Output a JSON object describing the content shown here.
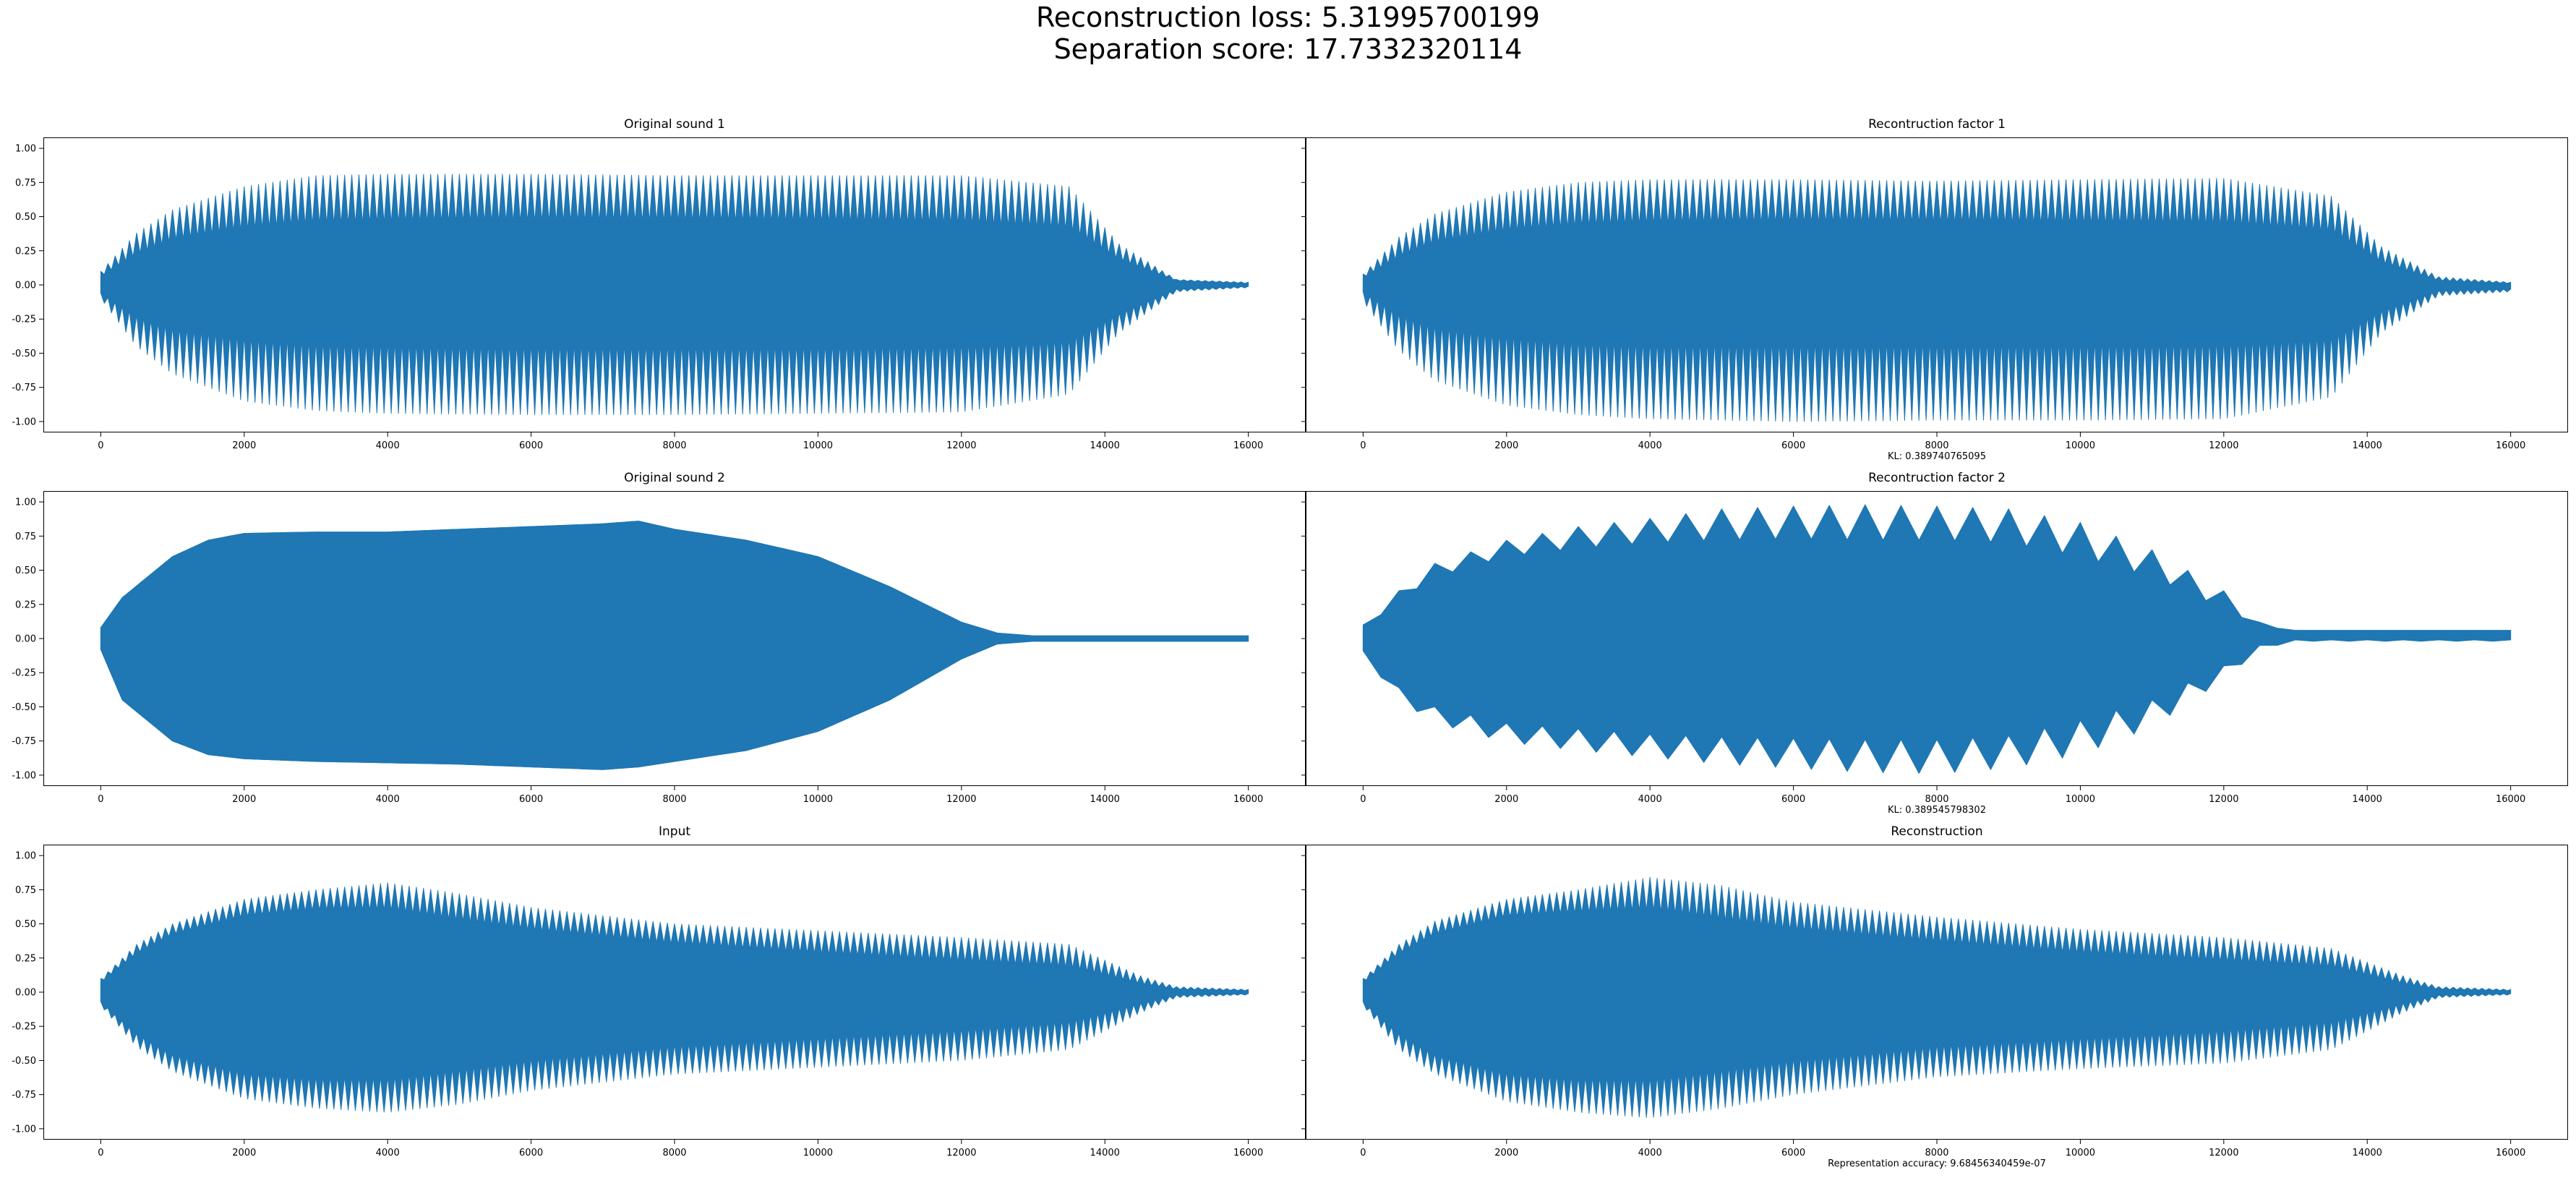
{
  "figure": {
    "suptitle_line1": "Reconstruction loss: 5.31995700199",
    "suptitle_line2": "Separation score: 17.7332320114",
    "line_color": "#1f77b4",
    "background": "#ffffff"
  },
  "chart_data": [
    {
      "type": "line",
      "title": "Original sound 1",
      "xlabel": "",
      "xlim": [
        -800,
        16800
      ],
      "ylim": [
        -1.08,
        1.08
      ],
      "xticks": [
        0,
        2000,
        4000,
        6000,
        8000,
        10000,
        12000,
        14000,
        16000
      ],
      "yticks": [
        -1.0,
        -0.75,
        -0.5,
        -0.25,
        0.0,
        0.25,
        0.5,
        0.75,
        1.0
      ],
      "ytick_labels": [
        "-1.00",
        "-0.75",
        "-0.50",
        "-0.25",
        "0.00",
        "0.25",
        "0.50",
        "0.75",
        "1.00"
      ],
      "envelope": {
        "x": [
          0,
          500,
          1000,
          2000,
          3000,
          4000,
          6000,
          8000,
          10000,
          12000,
          13500,
          14200,
          15000,
          16000
        ],
        "max": [
          0.1,
          0.38,
          0.55,
          0.72,
          0.8,
          0.81,
          0.81,
          0.8,
          0.8,
          0.8,
          0.72,
          0.3,
          0.04,
          0.02
        ],
        "min": [
          -0.1,
          -0.45,
          -0.65,
          -0.85,
          -0.92,
          -0.94,
          -0.95,
          -0.95,
          -0.94,
          -0.93,
          -0.8,
          -0.35,
          -0.05,
          -0.02
        ],
        "core_max": [
          0.06,
          0.22,
          0.32,
          0.4,
          0.44,
          0.45,
          0.46,
          0.46,
          0.45,
          0.44,
          0.4,
          0.18,
          0.03,
          0.01
        ],
        "core_min": [
          -0.06,
          -0.22,
          -0.3,
          -0.36,
          -0.4,
          -0.41,
          -0.42,
          -0.42,
          -0.42,
          -0.41,
          -0.38,
          -0.2,
          -0.03,
          -0.01
        ],
        "period": 100
      },
      "grid": false
    },
    {
      "type": "line",
      "title": "Recontruction factor 1",
      "xlabel": "KL: 0.389740765095",
      "xlim": [
        -800,
        16800
      ],
      "ylim": [
        -1.08,
        1.08
      ],
      "xticks": [
        0,
        2000,
        4000,
        6000,
        8000,
        10000,
        12000,
        14000,
        16000
      ],
      "yticks": [
        -1.0,
        -0.75,
        -0.5,
        -0.25,
        0.0,
        0.25,
        0.5,
        0.75,
        1.0
      ],
      "ytick_labels": [
        "",
        "",
        "",
        "",
        "",
        "",
        "",
        "",
        ""
      ],
      "envelope": {
        "x": [
          0,
          500,
          1000,
          2000,
          3000,
          4000,
          6000,
          8000,
          10000,
          12000,
          13500,
          14200,
          15000,
          16000
        ],
        "max": [
          0.08,
          0.35,
          0.52,
          0.68,
          0.75,
          0.77,
          0.77,
          0.76,
          0.77,
          0.78,
          0.65,
          0.28,
          0.06,
          0.02
        ],
        "min": [
          -0.12,
          -0.48,
          -0.7,
          -0.88,
          -0.95,
          -0.98,
          -1.0,
          -0.99,
          -0.99,
          -0.98,
          -0.82,
          -0.35,
          -0.08,
          -0.05
        ],
        "core_max": [
          0.05,
          0.2,
          0.3,
          0.38,
          0.42,
          0.44,
          0.45,
          0.45,
          0.44,
          0.43,
          0.38,
          0.16,
          0.03,
          0.01
        ],
        "core_min": [
          -0.05,
          -0.2,
          -0.28,
          -0.34,
          -0.38,
          -0.4,
          -0.4,
          -0.4,
          -0.4,
          -0.39,
          -0.36,
          -0.18,
          -0.04,
          -0.03
        ],
        "period": 100
      },
      "grid": false
    },
    {
      "type": "line",
      "title": "Original sound 2",
      "xlabel": "",
      "xlim": [
        -800,
        16800
      ],
      "ylim": [
        -1.08,
        1.08
      ],
      "xticks": [
        0,
        2000,
        4000,
        6000,
        8000,
        10000,
        12000,
        14000,
        16000
      ],
      "yticks": [
        -1.0,
        -0.75,
        -0.5,
        -0.25,
        0.0,
        0.25,
        0.5,
        0.75,
        1.0
      ],
      "ytick_labels": [
        "-1.00",
        "-0.75",
        "-0.50",
        "-0.25",
        "0.00",
        "0.25",
        "0.50",
        "0.75",
        "1.00"
      ],
      "envelope": {
        "x": [
          0,
          300,
          1000,
          1500,
          2000,
          3000,
          4000,
          5000,
          6000,
          7000,
          7500,
          8000,
          9000,
          10000,
          11000,
          12000,
          12500,
          13000,
          16000
        ],
        "max": [
          0.08,
          0.3,
          0.6,
          0.72,
          0.77,
          0.78,
          0.78,
          0.8,
          0.82,
          0.84,
          0.86,
          0.8,
          0.72,
          0.6,
          0.38,
          0.12,
          0.04,
          0.02,
          0.02
        ],
        "min": [
          -0.08,
          -0.45,
          -0.75,
          -0.85,
          -0.88,
          -0.9,
          -0.91,
          -0.92,
          -0.94,
          -0.96,
          -0.94,
          -0.9,
          -0.82,
          -0.68,
          -0.45,
          -0.15,
          -0.04,
          -0.02,
          -0.02
        ],
        "core_max": [
          0.08,
          0.3,
          0.6,
          0.72,
          0.77,
          0.78,
          0.78,
          0.8,
          0.82,
          0.84,
          0.86,
          0.8,
          0.72,
          0.6,
          0.38,
          0.12,
          0.04,
          0.02,
          0.02
        ],
        "core_min": [
          -0.08,
          -0.45,
          -0.75,
          -0.85,
          -0.88,
          -0.9,
          -0.91,
          -0.92,
          -0.94,
          -0.96,
          -0.94,
          -0.9,
          -0.82,
          -0.68,
          -0.45,
          -0.15,
          -0.04,
          -0.02,
          -0.02
        ],
        "period": 500
      },
      "grid": false
    },
    {
      "type": "line",
      "title": "Recontruction factor 2",
      "xlabel": "KL: 0.389545798302",
      "xlim": [
        -800,
        16800
      ],
      "ylim": [
        -1.08,
        1.08
      ],
      "xticks": [
        0,
        2000,
        4000,
        6000,
        8000,
        10000,
        12000,
        14000,
        16000
      ],
      "yticks": [
        -1.0,
        -0.75,
        -0.5,
        -0.25,
        0.0,
        0.25,
        0.5,
        0.75,
        1.0
      ],
      "ytick_labels": [
        "",
        "",
        "",
        "",
        "",
        "",
        "",
        "",
        ""
      ],
      "envelope": {
        "x": [
          0,
          500,
          1000,
          2000,
          3000,
          4000,
          5000,
          6000,
          7000,
          8000,
          9000,
          10000,
          11000,
          12000,
          12500,
          13000,
          16000
        ],
        "max": [
          0.1,
          0.35,
          0.55,
          0.72,
          0.82,
          0.88,
          0.95,
          0.97,
          0.98,
          0.97,
          0.95,
          0.85,
          0.65,
          0.35,
          0.12,
          0.06,
          0.06
        ],
        "min": [
          -0.12,
          -0.45,
          -0.62,
          -0.76,
          -0.82,
          -0.87,
          -0.92,
          -0.95,
          -0.98,
          -0.99,
          -0.95,
          -0.85,
          -0.65,
          -0.3,
          -0.08,
          -0.02,
          -0.02
        ],
        "core_max": [
          0.07,
          0.28,
          0.45,
          0.6,
          0.66,
          0.7,
          0.72,
          0.73,
          0.72,
          0.72,
          0.7,
          0.6,
          0.45,
          0.22,
          0.09,
          0.06,
          0.06
        ],
        "core_min": [
          -0.09,
          -0.36,
          -0.5,
          -0.62,
          -0.66,
          -0.7,
          -0.72,
          -0.73,
          -0.74,
          -0.74,
          -0.71,
          -0.6,
          -0.45,
          -0.2,
          -0.05,
          -0.01,
          -0.01
        ],
        "period": 500
      },
      "grid": false
    },
    {
      "type": "line",
      "title": "Input",
      "xlabel": "",
      "xlim": [
        -800,
        16800
      ],
      "ylim": [
        -1.08,
        1.08
      ],
      "xticks": [
        0,
        2000,
        4000,
        6000,
        8000,
        10000,
        12000,
        14000,
        16000
      ],
      "yticks": [
        -1.0,
        -0.75,
        -0.5,
        -0.25,
        0.0,
        0.25,
        0.5,
        0.75,
        1.0
      ],
      "ytick_labels": [
        "-1.00",
        "-0.75",
        "-0.50",
        "-0.25",
        "0.00",
        "0.25",
        "0.50",
        "0.75",
        "1.00"
      ],
      "envelope": {
        "x": [
          0,
          500,
          1000,
          2000,
          3000,
          4000,
          5000,
          6000,
          8000,
          10000,
          12000,
          13500,
          14500,
          15000,
          16000
        ],
        "max": [
          0.1,
          0.35,
          0.5,
          0.68,
          0.75,
          0.8,
          0.72,
          0.62,
          0.5,
          0.45,
          0.4,
          0.35,
          0.12,
          0.04,
          0.02
        ],
        "min": [
          -0.1,
          -0.4,
          -0.58,
          -0.78,
          -0.85,
          -0.88,
          -0.82,
          -0.72,
          -0.6,
          -0.55,
          -0.5,
          -0.42,
          -0.15,
          -0.04,
          -0.02
        ],
        "core_max": [
          0.07,
          0.28,
          0.42,
          0.55,
          0.6,
          0.6,
          0.52,
          0.45,
          0.35,
          0.28,
          0.22,
          0.18,
          0.06,
          0.02,
          0.01
        ],
        "core_min": [
          -0.07,
          -0.3,
          -0.45,
          -0.58,
          -0.62,
          -0.62,
          -0.55,
          -0.48,
          -0.38,
          -0.32,
          -0.26,
          -0.2,
          -0.08,
          -0.02,
          -0.01
        ],
        "period": 100
      },
      "grid": false
    },
    {
      "type": "line",
      "title": "Reconstruction",
      "xlabel": "Representation accuracy: 9.68456340459e-07",
      "xlim": [
        -800,
        16800
      ],
      "ylim": [
        -1.08,
        1.08
      ],
      "xticks": [
        0,
        2000,
        4000,
        6000,
        8000,
        10000,
        12000,
        14000,
        16000
      ],
      "yticks": [
        -1.0,
        -0.75,
        -0.5,
        -0.25,
        0.0,
        0.25,
        0.5,
        0.75,
        1.0
      ],
      "ytick_labels": [
        "",
        "",
        "",
        "",
        "",
        "",
        "",
        "",
        ""
      ],
      "envelope": {
        "x": [
          0,
          500,
          1000,
          2000,
          3000,
          4000,
          5000,
          6000,
          8000,
          10000,
          12000,
          13500,
          14500,
          15000,
          16000
        ],
        "max": [
          0.1,
          0.35,
          0.52,
          0.68,
          0.75,
          0.84,
          0.78,
          0.66,
          0.55,
          0.46,
          0.4,
          0.32,
          0.12,
          0.04,
          0.02
        ],
        "min": [
          -0.1,
          -0.42,
          -0.6,
          -0.8,
          -0.88,
          -0.92,
          -0.85,
          -0.75,
          -0.62,
          -0.56,
          -0.52,
          -0.42,
          -0.15,
          -0.04,
          -0.02
        ],
        "core_max": [
          0.07,
          0.28,
          0.42,
          0.55,
          0.58,
          0.6,
          0.52,
          0.45,
          0.36,
          0.28,
          0.22,
          0.18,
          0.06,
          0.02,
          0.01
        ],
        "core_min": [
          -0.07,
          -0.3,
          -0.45,
          -0.58,
          -0.62,
          -0.62,
          -0.55,
          -0.48,
          -0.38,
          -0.32,
          -0.26,
          -0.2,
          -0.08,
          -0.02,
          -0.01
        ],
        "period": 100
      },
      "grid": false
    }
  ]
}
